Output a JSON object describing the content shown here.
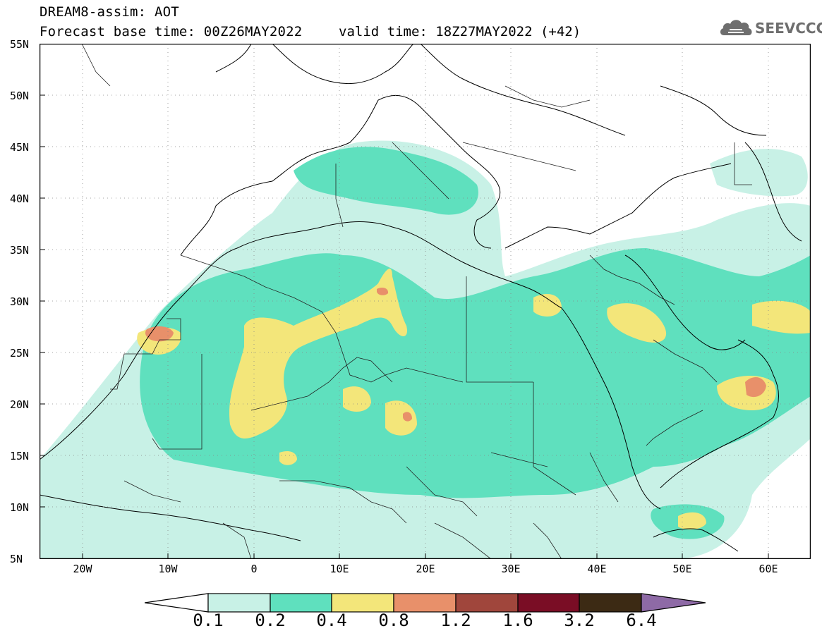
{
  "title": {
    "line1": "DREAM8-assim: AOT",
    "base_time": "Forecast base time: 00Z26MAY2022",
    "valid_time": "valid time: 18Z27MAY2022 (+42)"
  },
  "logo": {
    "text": "SEEVCCC",
    "icon": "cloud-icon"
  },
  "axes": {
    "lat_labels": [
      "55N",
      "50N",
      "45N",
      "40N",
      "35N",
      "30N",
      "25N",
      "20N",
      "15N",
      "10N",
      "5N"
    ],
    "lon_labels": [
      "20W",
      "10W",
      "0",
      "10E",
      "20E",
      "30E",
      "40E",
      "50E",
      "60E"
    ],
    "lat_range": [
      5,
      55
    ],
    "lon_range": [
      -25,
      65
    ]
  },
  "colorbar": {
    "labels": [
      "0.1",
      "0.2",
      "0.4",
      "0.8",
      "1.2",
      "1.6",
      "3.2",
      "6.4"
    ],
    "colors": {
      "under": "#ffffff",
      "c1": "#c8f1e6",
      "c2": "#5fe0be",
      "c3": "#f3e67a",
      "c4": "#e8906a",
      "c5": "#a0463c",
      "c6": "#7a0d25",
      "c7": "#3c2a14",
      "over": "#8e6aa6"
    }
  },
  "field_colors": {
    "light": "#c8f1e6",
    "medium": "#5fe0be",
    "yellow": "#f3e67a",
    "orange": "#e8906a"
  }
}
